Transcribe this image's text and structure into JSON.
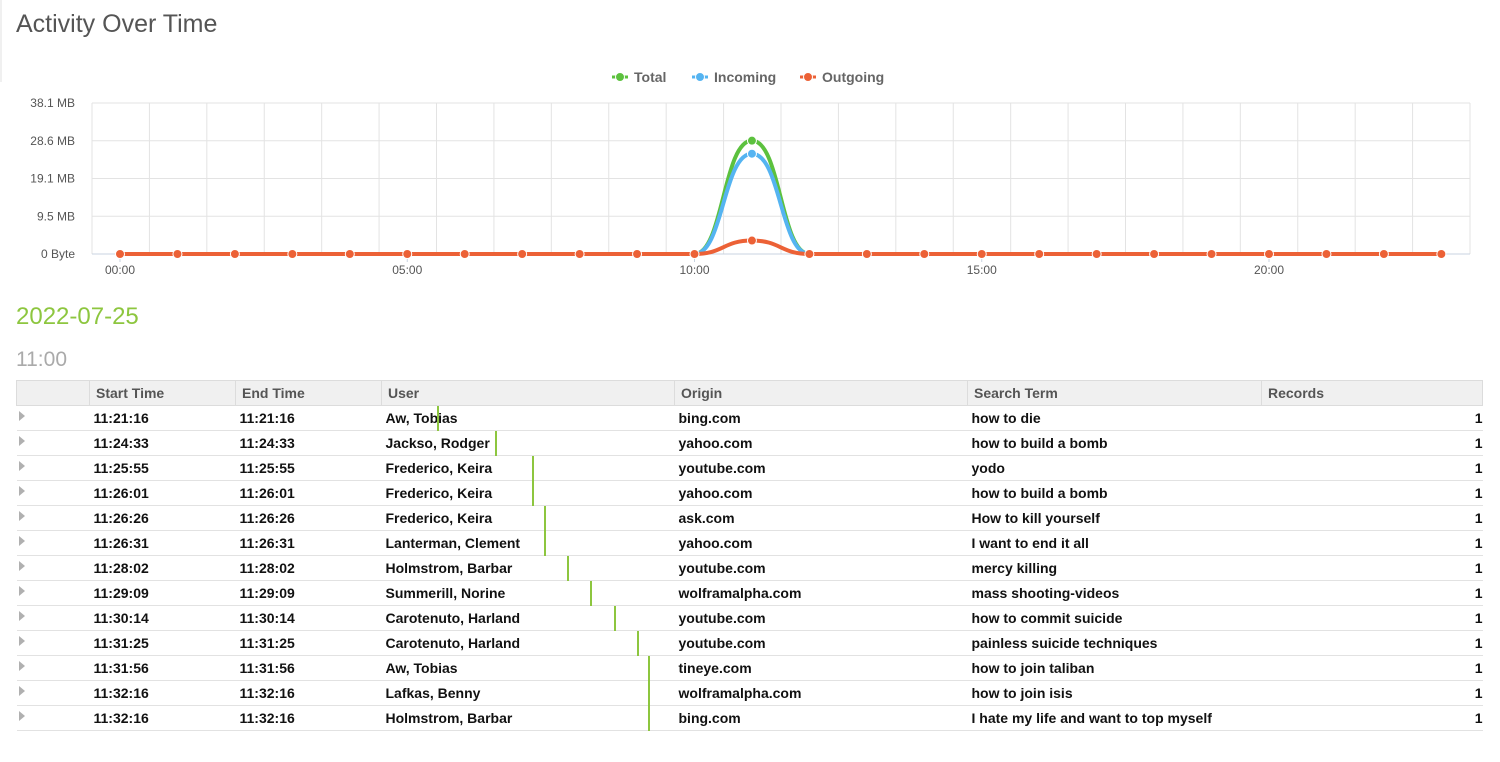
{
  "page": {
    "title": "Activity Over Time"
  },
  "colors": {
    "total": "#5cc13e",
    "incoming": "#55b4f1",
    "outgoing": "#ec6136",
    "accent": "#8dc63f"
  },
  "chart_data": {
    "type": "line",
    "title": "",
    "xlabel": "",
    "ylabel": "",
    "legend_position": "top-center",
    "grid": true,
    "y_tick_labels": [
      "0 Byte",
      "9.5 MB",
      "19.1 MB",
      "28.6 MB",
      "38.1 MB"
    ],
    "x_tick_labels": [
      "00:00",
      "05:00",
      "10:00",
      "15:00",
      "20:00"
    ],
    "ylim_mb": [
      0,
      38.1
    ],
    "x_hours": [
      0,
      1,
      2,
      3,
      4,
      5,
      6,
      7,
      8,
      9,
      10,
      11,
      12,
      13,
      14,
      15,
      16,
      17,
      18,
      19,
      20,
      21,
      22,
      23
    ],
    "series": [
      {
        "name": "Total",
        "color": "#5cc13e",
        "values": [
          0,
          0,
          0,
          0,
          0,
          0,
          0,
          0,
          0,
          0,
          0,
          28.6,
          0,
          0,
          0,
          0,
          0,
          0,
          0,
          0,
          0,
          0,
          0,
          0
        ]
      },
      {
        "name": "Incoming",
        "color": "#55b4f1",
        "values": [
          0,
          0,
          0,
          0,
          0,
          0,
          0,
          0,
          0,
          0,
          0,
          25.3,
          0,
          0,
          0,
          0,
          0,
          0,
          0,
          0,
          0,
          0,
          0,
          0
        ]
      },
      {
        "name": "Outgoing",
        "color": "#ec6136",
        "values": [
          0,
          0,
          0,
          0,
          0,
          0,
          0,
          0,
          0,
          0,
          0,
          3.4,
          0,
          0,
          0,
          0,
          0,
          0,
          0,
          0,
          0,
          0,
          0,
          0
        ]
      }
    ]
  },
  "section": {
    "date": "2022-07-25",
    "hour": "11:00"
  },
  "table": {
    "headers": [
      "Start Time",
      "End Time",
      "User",
      "Origin",
      "Search Term",
      "Records"
    ],
    "rows": [
      {
        "start": "11:21:16",
        "end": "11:21:16",
        "user": "Aw, Tobias",
        "origin": "bing.com",
        "term": "how to die",
        "records": "1",
        "bar": 0.19
      },
      {
        "start": "11:24:33",
        "end": "11:24:33",
        "user": "Jackso, Rodger",
        "origin": "yahoo.com",
        "term": "how to build a bomb",
        "records": "1",
        "bar": 0.39
      },
      {
        "start": "11:25:55",
        "end": "11:25:55",
        "user": "Frederico, Keira",
        "origin": "youtube.com",
        "term": "yodo",
        "records": "1",
        "bar": 0.52
      },
      {
        "start": "11:26:01",
        "end": "11:26:01",
        "user": "Frederico, Keira",
        "origin": "yahoo.com",
        "term": "how to build a bomb",
        "records": "1",
        "bar": 0.52
      },
      {
        "start": "11:26:26",
        "end": "11:26:26",
        "user": "Frederico, Keira",
        "origin": "ask.com",
        "term": "How to kill yourself",
        "records": "1",
        "bar": 0.56
      },
      {
        "start": "11:26:31",
        "end": "11:26:31",
        "user": "Lanterman, Clement",
        "origin": "yahoo.com",
        "term": "I want to end it all",
        "records": "1",
        "bar": 0.56
      },
      {
        "start": "11:28:02",
        "end": "11:28:02",
        "user": "Holmstrom, Barbar",
        "origin": "youtube.com",
        "term": "mercy killing",
        "records": "1",
        "bar": 0.64
      },
      {
        "start": "11:29:09",
        "end": "11:29:09",
        "user": "Summerill, Norine",
        "origin": "wolframalpha.com",
        "term": "mass shooting-videos",
        "records": "1",
        "bar": 0.72
      },
      {
        "start": "11:30:14",
        "end": "11:30:14",
        "user": "Carotenuto, Harland",
        "origin": "youtube.com",
        "term": "how to commit suicide",
        "records": "1",
        "bar": 0.8
      },
      {
        "start": "11:31:25",
        "end": "11:31:25",
        "user": "Carotenuto, Harland",
        "origin": "youtube.com",
        "term": "painless suicide techniques",
        "records": "1",
        "bar": 0.88
      },
      {
        "start": "11:31:56",
        "end": "11:31:56",
        "user": "Aw, Tobias",
        "origin": "tineye.com",
        "term": "how to join taliban",
        "records": "1",
        "bar": 0.92
      },
      {
        "start": "11:32:16",
        "end": "11:32:16",
        "user": "Lafkas, Benny",
        "origin": "wolframalpha.com",
        "term": "how to join isis",
        "records": "1",
        "bar": 0.92
      },
      {
        "start": "11:32:16",
        "end": "11:32:16",
        "user": "Holmstrom, Barbar",
        "origin": "bing.com",
        "term": "I hate my life and want to top myself",
        "records": "1",
        "bar": 0.92
      }
    ]
  }
}
